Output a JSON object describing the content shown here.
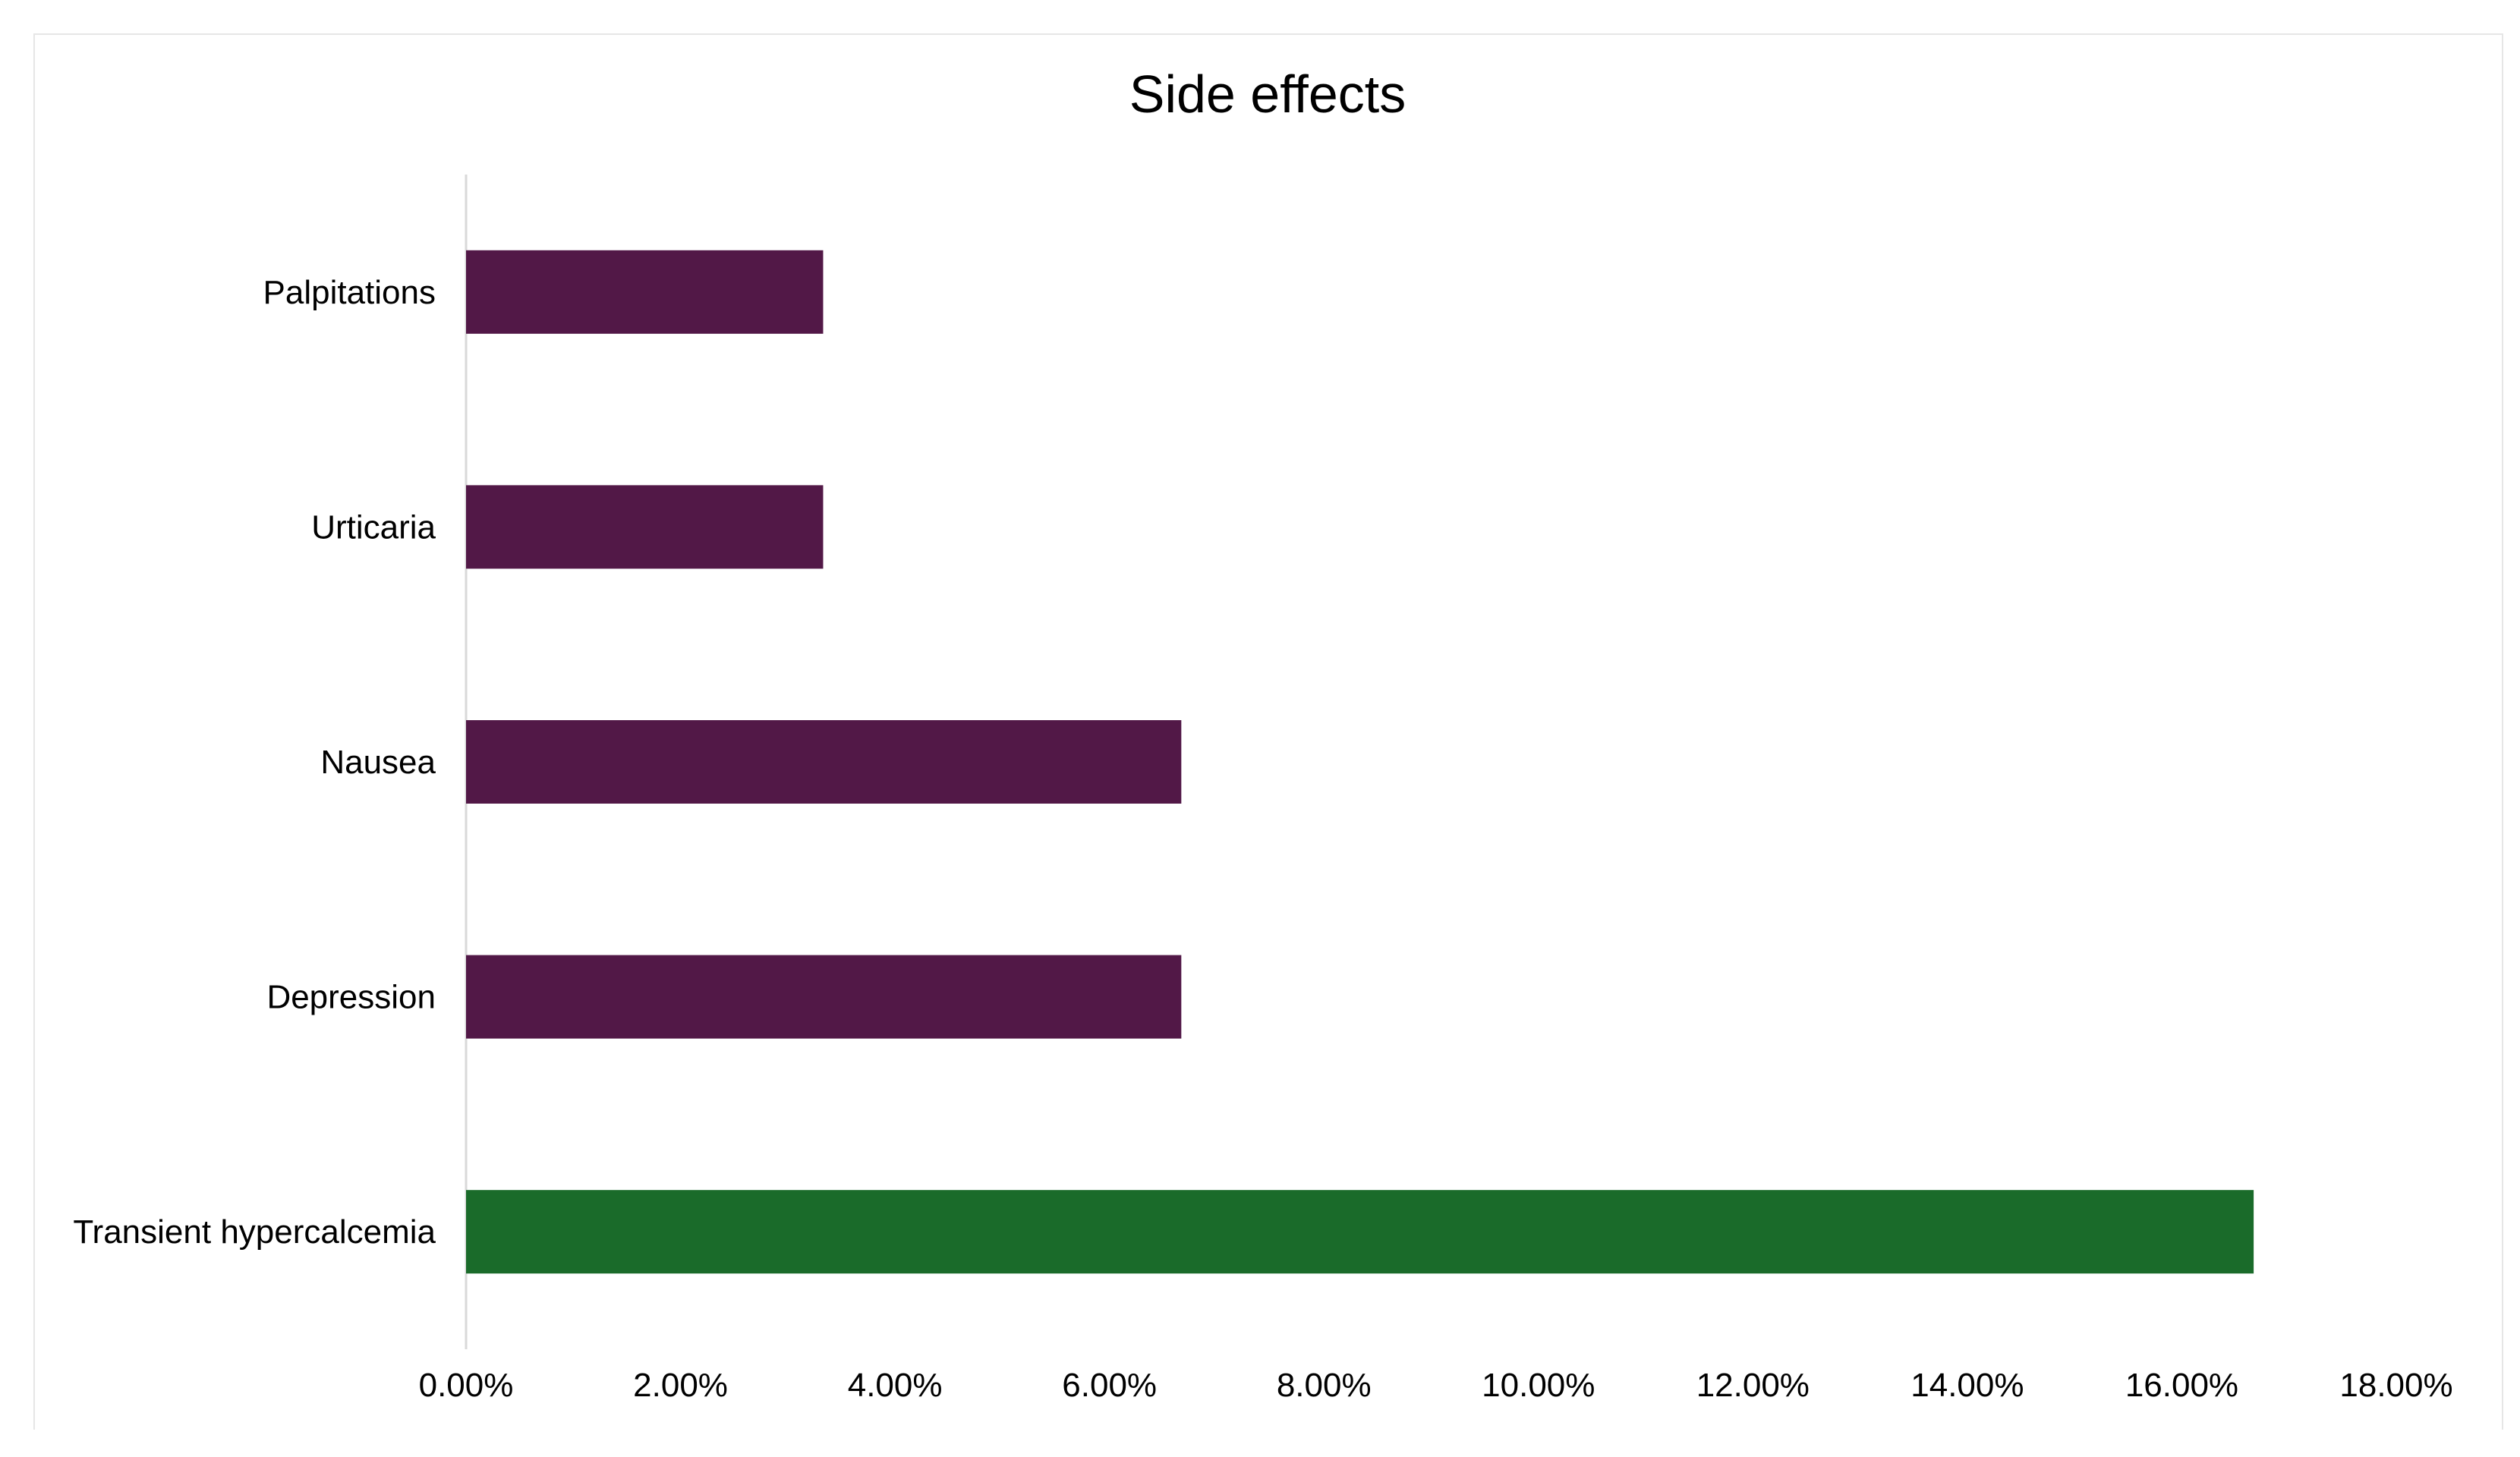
{
  "chart_data": {
    "type": "bar",
    "orientation": "horizontal",
    "title": "Side effects",
    "xlabel": "",
    "ylabel": "",
    "categories": [
      "Palpitations",
      "Urticaria",
      "Nausea",
      "Depression",
      "Transient hypercalcemia"
    ],
    "values": [
      3.33,
      3.33,
      6.67,
      6.67,
      16.67
    ],
    "bar_colors": [
      "#521847",
      "#521847",
      "#521847",
      "#521847",
      "#1a6b2a"
    ],
    "xlim": [
      0,
      18
    ],
    "x_ticks": [
      0,
      2,
      4,
      6,
      8,
      10,
      12,
      14,
      16,
      18
    ],
    "x_tick_labels": [
      "0.00%",
      "2.00%",
      "4.00%",
      "6.00%",
      "8.00%",
      "10.00%",
      "12.00%",
      "14.00%",
      "16.00%",
      "18.00%"
    ],
    "grid": false,
    "legend": "none"
  }
}
